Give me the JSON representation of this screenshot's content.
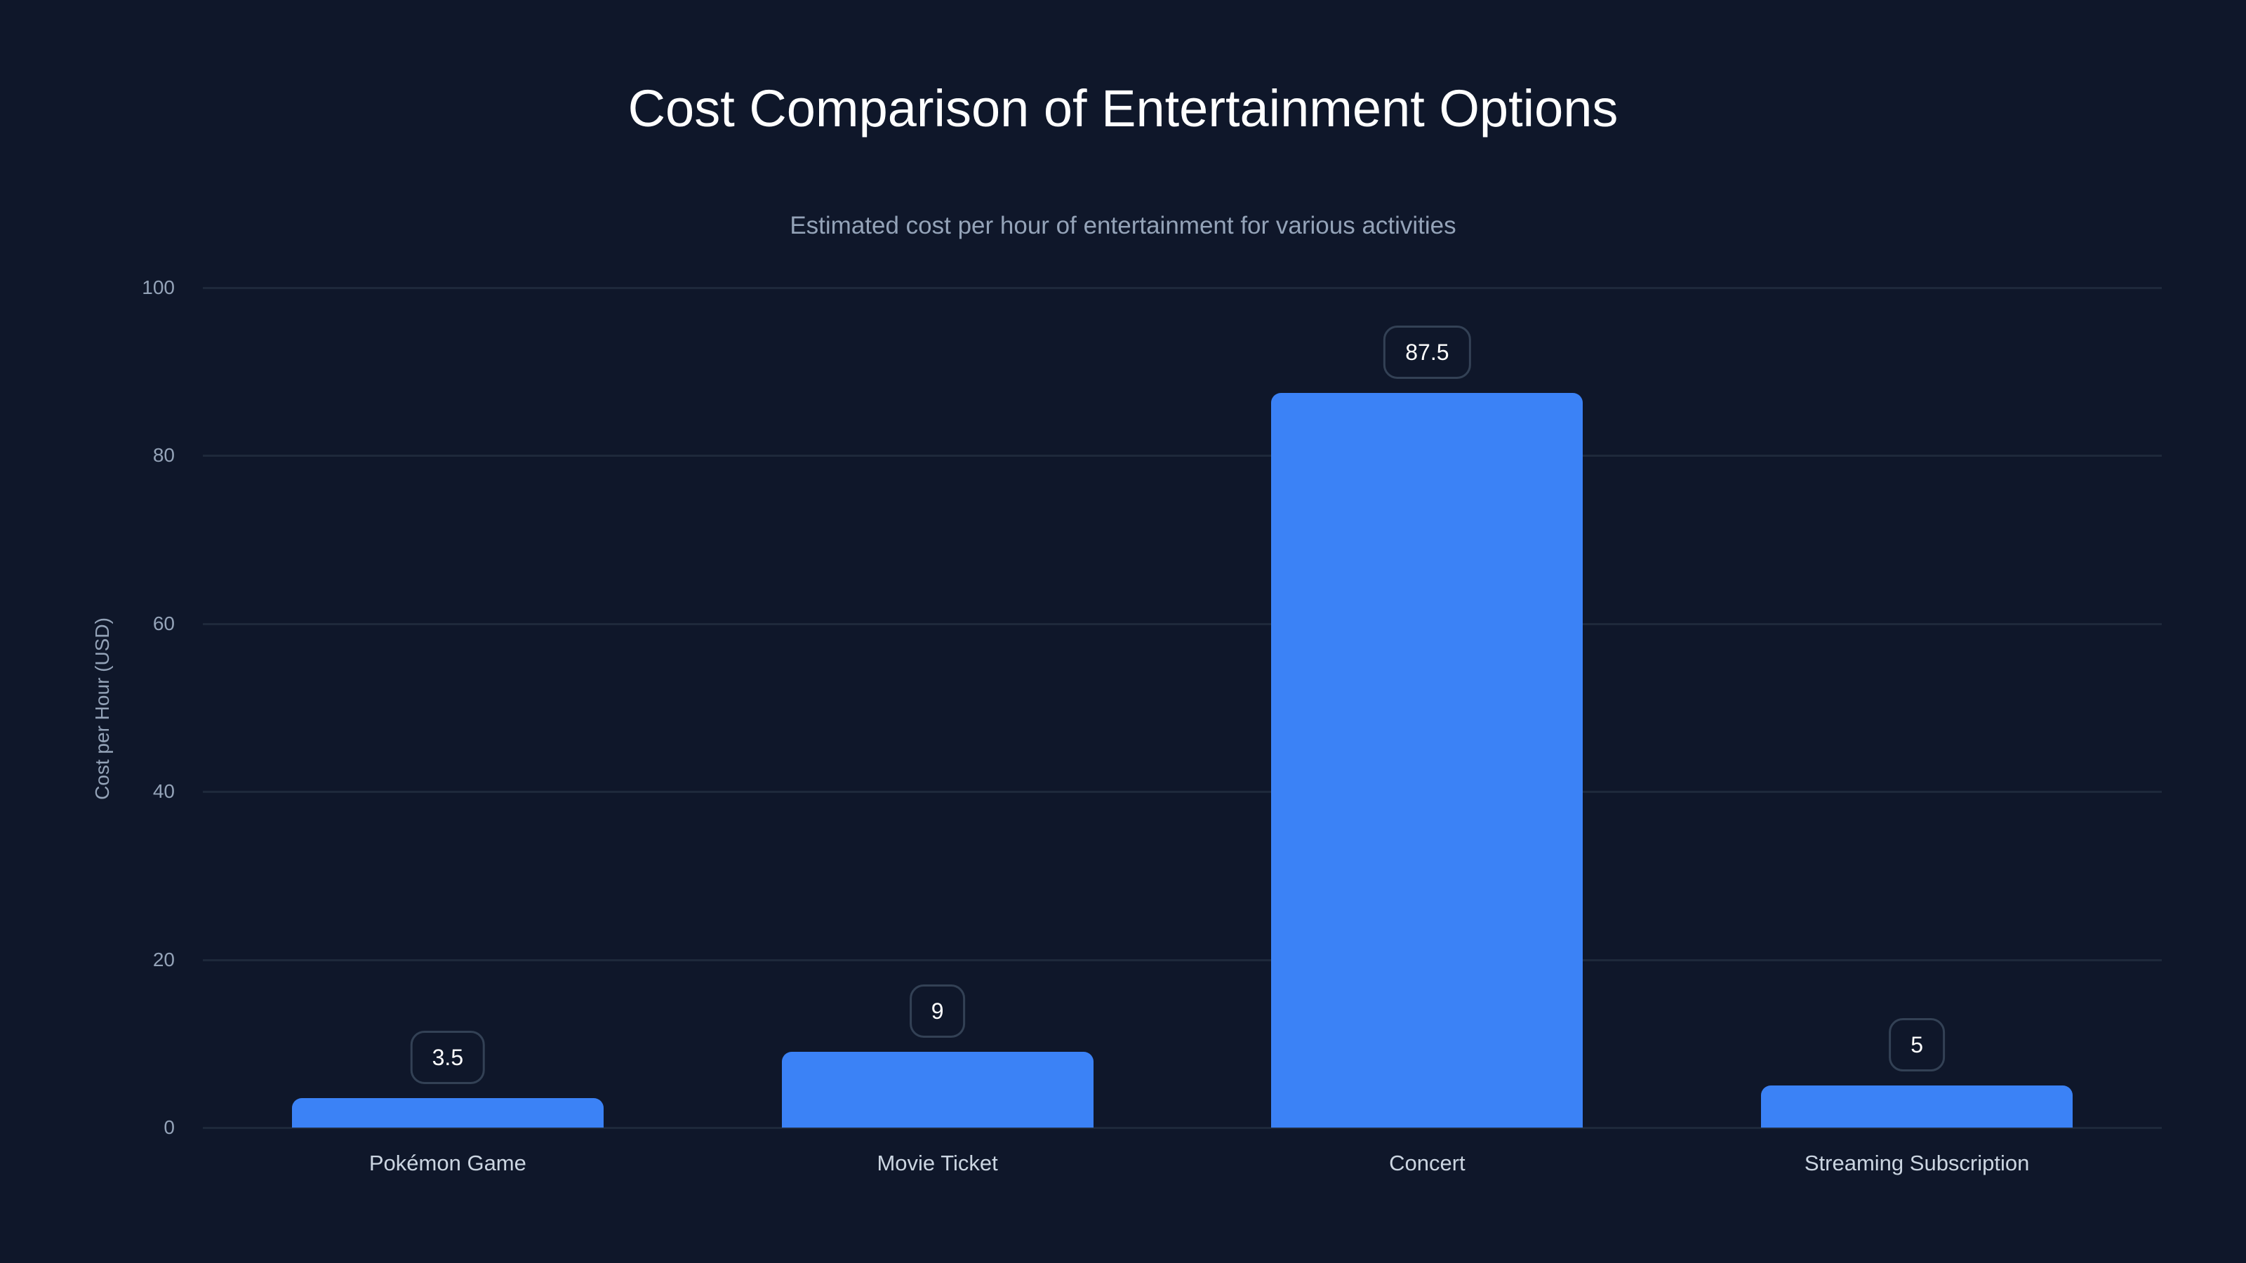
{
  "title": "Cost Comparison of Entertainment Options",
  "subtitle": "Estimated cost per hour of entertainment for various activities",
  "axis": {
    "ylabel": "Cost per Hour (USD)",
    "yticks": [
      "0",
      "20",
      "40",
      "60",
      "80",
      "100"
    ]
  },
  "bars": [
    {
      "label": "Pokémon Game",
      "value": "3.5"
    },
    {
      "label": "Movie Ticket",
      "value": "9"
    },
    {
      "label": "Concert",
      "value": "87.5"
    },
    {
      "label": "Streaming Subscription",
      "value": "5"
    }
  ],
  "colors": {
    "bar": "#3b82f6",
    "background": "#0f172a",
    "grid": "#1e293b"
  },
  "chart_data": {
    "type": "bar",
    "title": "Cost Comparison of Entertainment Options",
    "subtitle": "Estimated cost per hour of entertainment for various activities",
    "categories": [
      "Pokémon Game",
      "Movie Ticket",
      "Concert",
      "Streaming Subscription"
    ],
    "values": [
      3.5,
      9,
      87.5,
      5
    ],
    "xlabel": "",
    "ylabel": "Cost per Hour (USD)",
    "ylim": [
      0,
      100
    ],
    "yticks": [
      0,
      20,
      40,
      60,
      80,
      100
    ],
    "grid": true,
    "legend": null,
    "data_labels": true
  }
}
